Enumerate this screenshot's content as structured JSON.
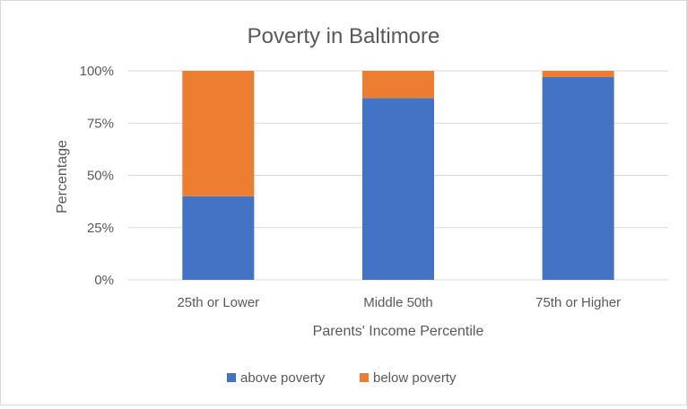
{
  "chart_data": {
    "type": "bar",
    "stacked": true,
    "title": "Poverty in Baltimore",
    "xlabel": "Parents' Income Percentile",
    "ylabel": "Percentage",
    "categories": [
      "25th or Lower",
      "Middle 50th",
      "75th or Higher"
    ],
    "series": [
      {
        "name": "above poverty",
        "values": [
          40,
          87,
          97
        ],
        "color": "#4472c4"
      },
      {
        "name": "below poverty",
        "values": [
          60,
          13,
          3
        ],
        "color": "#ed7d31"
      }
    ],
    "ylim": [
      0,
      100
    ],
    "yticks": [
      "0%",
      "25%",
      "50%",
      "75%",
      "100%"
    ],
    "ytick_values": [
      0,
      25,
      50,
      75,
      100
    ],
    "grid": true,
    "legend": "bottom"
  }
}
